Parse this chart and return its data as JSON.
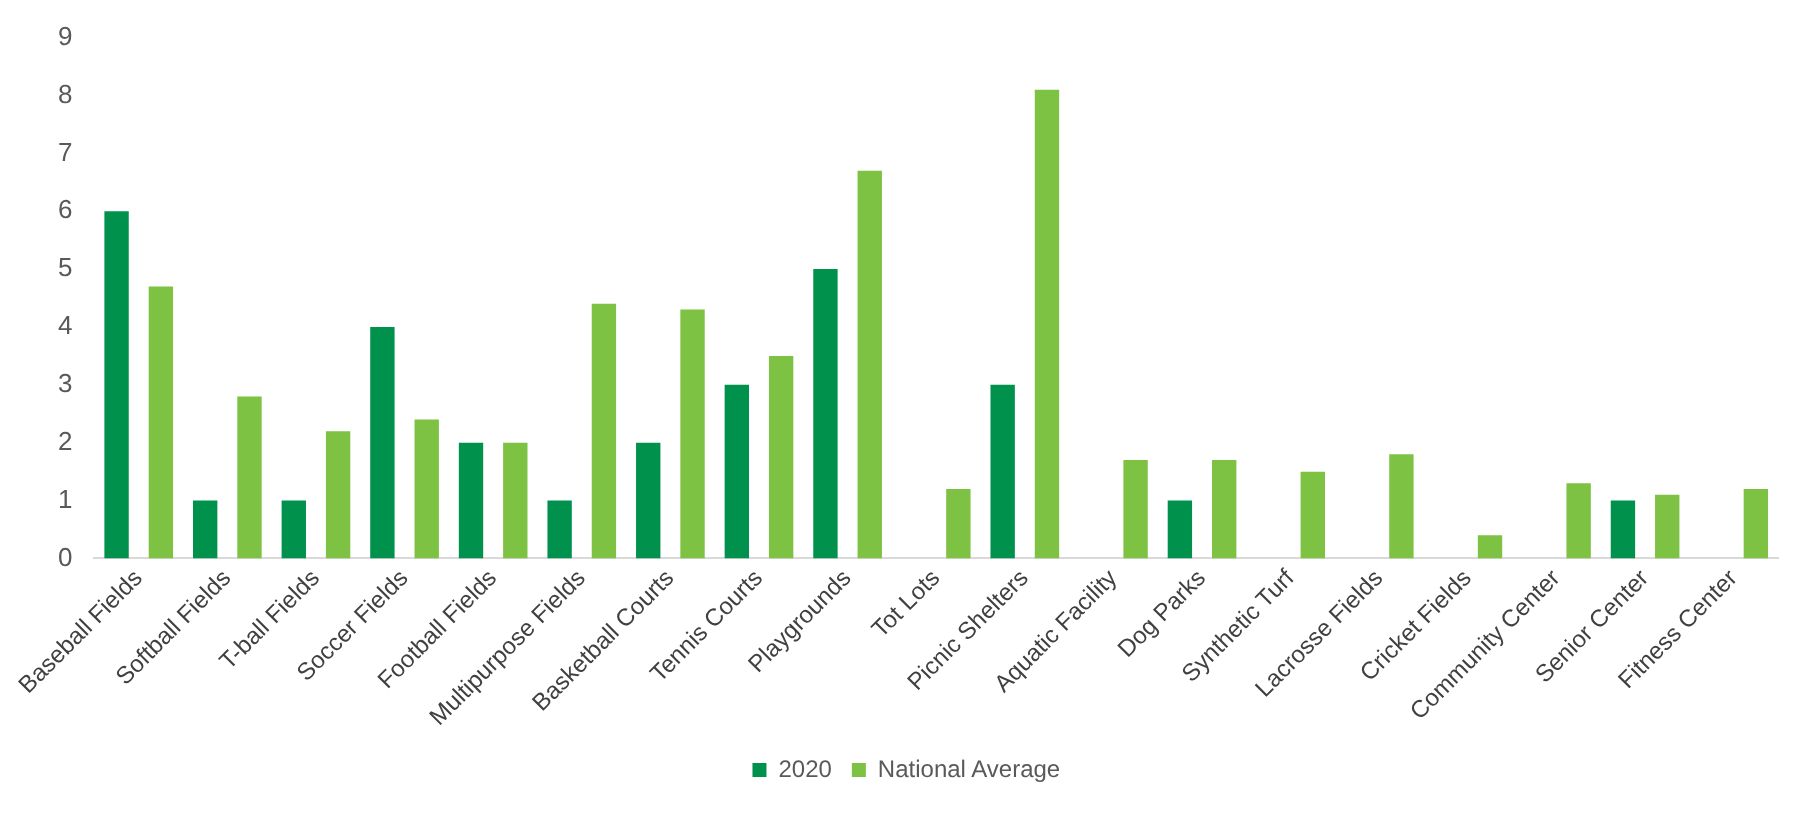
{
  "chart_data": {
    "type": "bar",
    "categories": [
      "Baseball Fields",
      "Softball Fields",
      "T-ball Fields",
      "Soccer Fields",
      "Football Fields",
      "Multipurpose Fields",
      "Basketball Courts",
      "Tennis Courts",
      "Playgrounds",
      "Tot Lots",
      "Picnic Shelters",
      "Aquatic Facility",
      "Dog Parks",
      "Synthetic Turf",
      "Lacrosse Fields",
      "Cricket Fields",
      "Community Center",
      "Senior Center",
      "Fitness Center"
    ],
    "series": [
      {
        "name": "2020",
        "color": "#00914c",
        "values": [
          6,
          1,
          1,
          4,
          2,
          1,
          2,
          3,
          5,
          0,
          3,
          0,
          1,
          0,
          0,
          0,
          0,
          1,
          0
        ]
      },
      {
        "name": "National Average",
        "color": "#7dc242",
        "values": [
          4.7,
          2.8,
          2.2,
          2.4,
          2.0,
          4.4,
          4.3,
          3.5,
          6.7,
          1.2,
          8.1,
          1.7,
          1.7,
          1.5,
          1.8,
          0.4,
          1.3,
          1.1,
          1.2
        ]
      }
    ],
    "ylim": [
      0,
      9
    ],
    "yticks": [
      0,
      1,
      2,
      3,
      4,
      5,
      6,
      7,
      8,
      9
    ],
    "grid": false,
    "legend": "bottom"
  }
}
